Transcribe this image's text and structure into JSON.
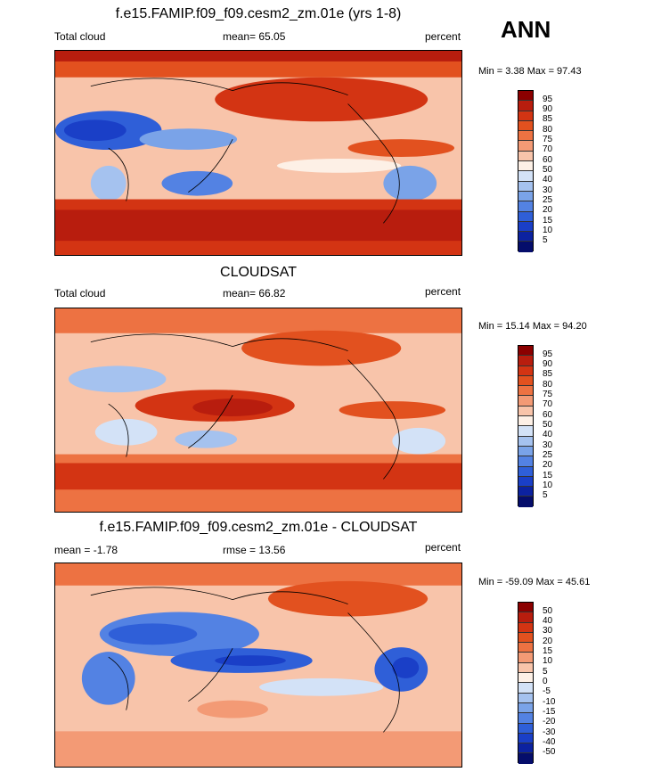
{
  "season": "ANN",
  "panels": [
    {
      "title": "f.e15.FAMIP.f09_f09.cesm2_zm.01e (yrs 1-8)",
      "left_label": "Total cloud",
      "center_label": "mean=  65.05",
      "right_label": "percent",
      "minmax": "Min =   3.38 Max =  97.43",
      "colorbar": {
        "labels": [
          "95",
          "90",
          "85",
          "80",
          "75",
          "70",
          "60",
          "50",
          "40",
          "30",
          "25",
          "20",
          "15",
          "10",
          "5"
        ],
        "colors": [
          "#8b0000",
          "#b81d0e",
          "#d33413",
          "#e2511f",
          "#ed7242",
          "#f39a75",
          "#f8c4aa",
          "#fdf0e6",
          "#d3e2f7",
          "#a5c2ef",
          "#7aa3e8",
          "#5382e3",
          "#2f5fd8",
          "#1a3fc7",
          "#0c22a0",
          "#050d6b"
        ]
      }
    },
    {
      "title": "CLOUDSAT",
      "left_label": "Total cloud",
      "center_label": "mean=  66.82",
      "right_label": "percent",
      "minmax": "Min =  15.14 Max =  94.20",
      "colorbar": {
        "labels": [
          "95",
          "90",
          "85",
          "80",
          "75",
          "70",
          "60",
          "50",
          "40",
          "30",
          "25",
          "20",
          "15",
          "10",
          "5"
        ],
        "colors": [
          "#8b0000",
          "#b81d0e",
          "#d33413",
          "#e2511f",
          "#ed7242",
          "#f39a75",
          "#f8c4aa",
          "#fdf0e6",
          "#d3e2f7",
          "#a5c2ef",
          "#7aa3e8",
          "#5382e3",
          "#2f5fd8",
          "#1a3fc7",
          "#0c22a0",
          "#050d6b"
        ]
      }
    },
    {
      "title": "f.e15.FAMIP.f09_f09.cesm2_zm.01e - CLOUDSAT",
      "left_label": "mean =  -1.78",
      "center_label": "rmse =  13.56",
      "right_label": "percent",
      "minmax": "Min = -59.09 Max =  45.61",
      "colorbar": {
        "labels": [
          "50",
          "40",
          "30",
          "20",
          "15",
          "10",
          "5",
          "0",
          "-5",
          "-10",
          "-15",
          "-20",
          "-30",
          "-40",
          "-50"
        ],
        "colors": [
          "#8b0000",
          "#b81d0e",
          "#d33413",
          "#e2511f",
          "#ed7242",
          "#f39a75",
          "#f8c4aa",
          "#fdf0e6",
          "#d3e2f7",
          "#a5c2ef",
          "#7aa3e8",
          "#5382e3",
          "#2f5fd8",
          "#1a3fc7",
          "#0c22a0",
          "#050d6b"
        ]
      }
    }
  ]
}
